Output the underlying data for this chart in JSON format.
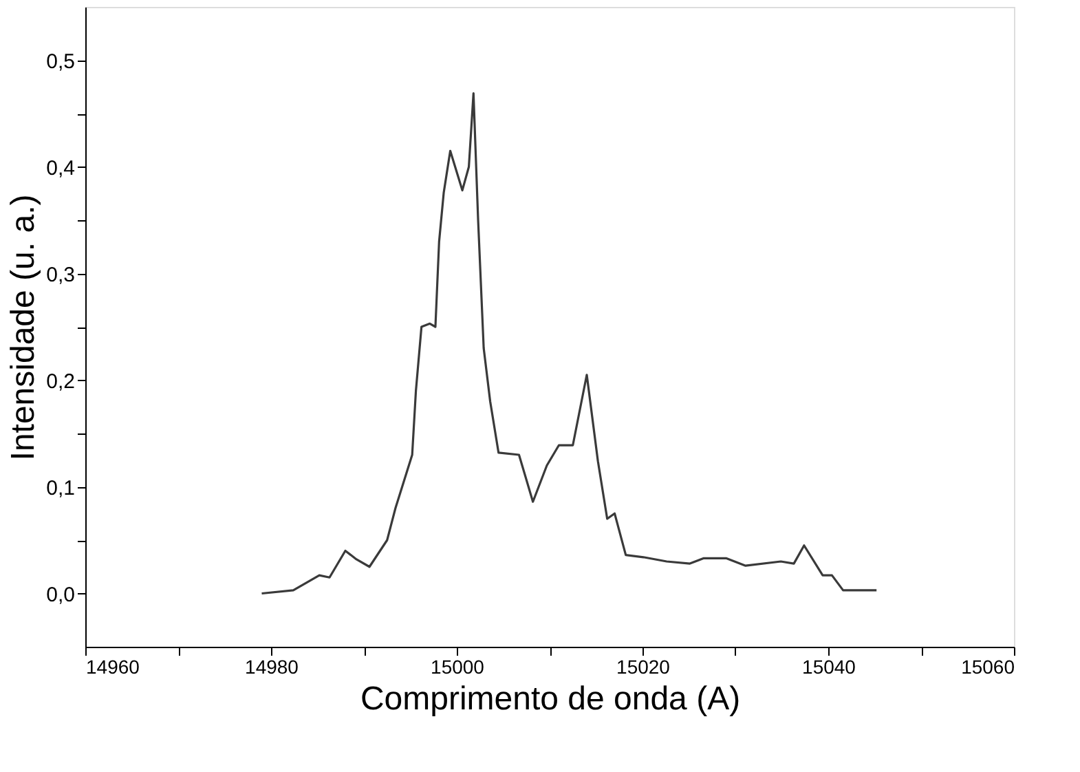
{
  "chart_data": {
    "type": "line",
    "xlabel": "Comprimento de onda (A)",
    "ylabel": "Intensidade (u. a.)",
    "x": [
      14979,
      14982.4,
      14985.2,
      14986.3,
      14988,
      14989.2,
      14990.6,
      14992.5,
      14993.4,
      14995.2,
      14995.6,
      14996.2,
      14997.1,
      14997.7,
      14998.1,
      14998.6,
      14999.3,
      15000.6,
      15001.3,
      15001.8,
      15002.3,
      15002.9,
      15003.6,
      15004.5,
      15006.7,
      15008.2,
      15009.7,
      15011,
      15012.5,
      15014,
      15015.2,
      15016.2,
      15017,
      15018.2,
      15020.1,
      15022.6,
      15025.1,
      15026.6,
      15029,
      15031.1,
      15034.9,
      15036.3,
      15037.4,
      15039.4,
      15040.4,
      15041.6,
      15045.2
    ],
    "series": [
      {
        "color": "#3a3a3a",
        "values": [
          0,
          0.003,
          0.017,
          0.015,
          0.04,
          0.032,
          0.025,
          0.05,
          0.08,
          0.13,
          0.19,
          0.25,
          0.253,
          0.25,
          0.33,
          0.376,
          0.415,
          0.378,
          0.4,
          0.469,
          0.35,
          0.23,
          0.18,
          0.132,
          0.13,
          0.086,
          0.12,
          0.139,
          0.139,
          0.205,
          0.124,
          0.07,
          0.075,
          0.036,
          0.034,
          0.03,
          0.028,
          0.033,
          0.033,
          0.026,
          0.03,
          0.028,
          0.045,
          0.017,
          0.017,
          0.003,
          0.003
        ]
      }
    ],
    "xlim": [
      14960,
      15060
    ],
    "xticks": [
      14960,
      {
        "value": 14970,
        "label": null
      },
      14980,
      {
        "value": 14990,
        "label": null
      },
      15000,
      {
        "value": 15010,
        "label": null
      },
      15020,
      {
        "value": 15030,
        "label": null
      },
      15040,
      {
        "value": 15050,
        "label": null
      },
      15060
    ],
    "ylim": [
      -0.05,
      0.55
    ],
    "yticks": [
      {
        "value": 0,
        "label": "0,0"
      },
      {
        "value": 0.05,
        "label": null
      },
      {
        "value": 0.1,
        "label": "0,1"
      },
      {
        "value": 0.15,
        "label": null
      },
      {
        "value": 0.2,
        "label": "0,2"
      },
      {
        "value": 0.25,
        "label": null
      },
      {
        "value": 0.3,
        "label": "0,3"
      },
      {
        "value": 0.35,
        "label": null
      },
      {
        "value": 0.4,
        "label": "0,4"
      },
      {
        "value": 0.45,
        "label": null
      },
      {
        "value": 0.5,
        "label": "0,5"
      }
    ],
    "grid": false,
    "legend": false,
    "marker": "none",
    "line_style": "solid"
  }
}
